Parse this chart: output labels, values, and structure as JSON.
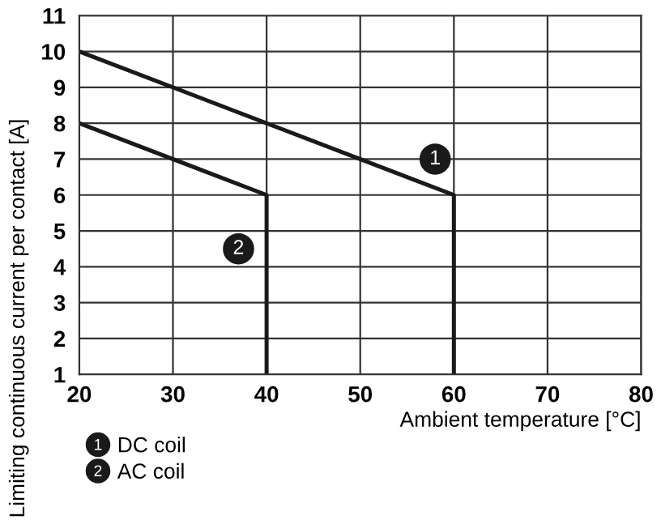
{
  "chart_data": {
    "type": "line",
    "xlabel": "Ambient temperature [°C]",
    "ylabel": "Limiting continuous current per contact [A]",
    "series": [
      {
        "name": "DC coil",
        "color": "#1a1a1a",
        "x": [
          20,
          60,
          60
        ],
        "values": [
          10,
          6,
          1
        ]
      },
      {
        "name": "AC coil",
        "color": "#1a1a1a",
        "x": [
          20,
          40,
          40
        ],
        "values": [
          8,
          6,
          1
        ]
      }
    ],
    "annotations": [
      {
        "text": "1",
        "x": 58,
        "y": 7
      },
      {
        "text": "2",
        "x": 37,
        "y": 4.5
      }
    ],
    "xlim": [
      20,
      80
    ],
    "xticks": [
      20,
      30,
      40,
      50,
      60,
      70,
      80
    ],
    "ylim": [
      1,
      11
    ],
    "yticks": [
      1,
      2,
      3,
      4,
      5,
      6,
      7,
      8,
      9,
      10,
      11
    ],
    "grid": true,
    "legend": "bottom left",
    "marker": "none",
    "line_style": "solid"
  }
}
